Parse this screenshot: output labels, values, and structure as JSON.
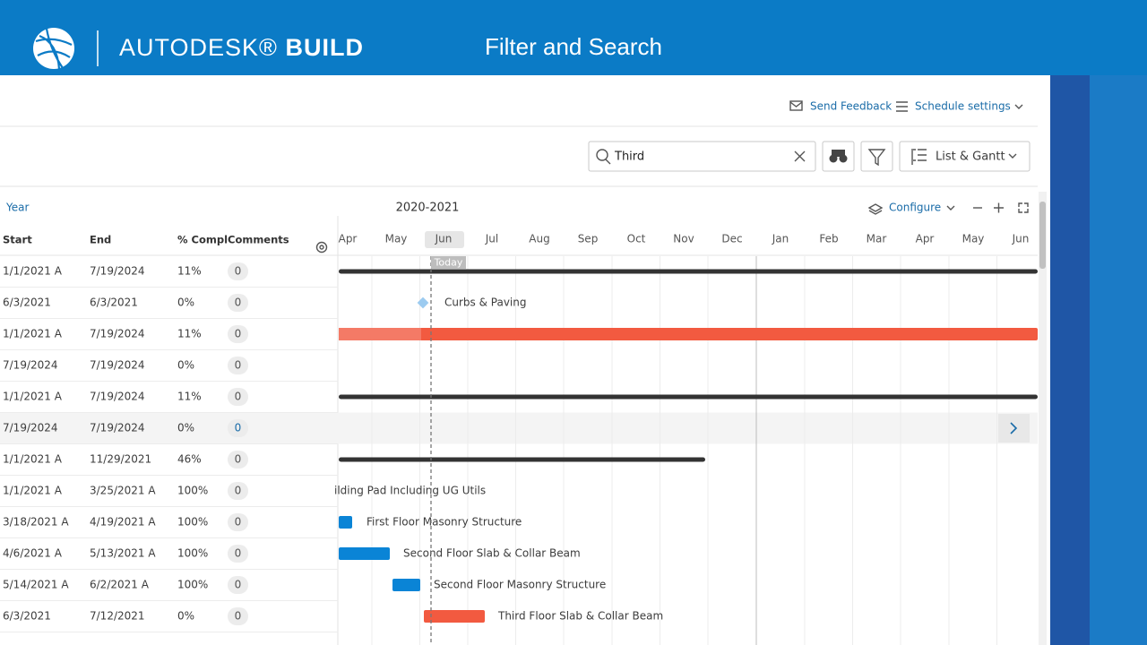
{
  "header": {
    "brand": "AUTODESK®",
    "brand_bold": "BUILD",
    "title": "Filter and Search"
  },
  "toolbar": {
    "send_feedback": "Send Feedback",
    "schedule_settings": "Schedule settings",
    "search": "Third",
    "view": "List & Gantt"
  },
  "table": {
    "timescale": "Year",
    "columns": [
      "Start",
      "End",
      "% Compl",
      "Comments"
    ],
    "rows": [
      {
        "cells": [
          "1/1/2021 A",
          "7/19/2024",
          "11%",
          "0"
        ]
      },
      {
        "cells": [
          "6/3/2021",
          "6/3/2021",
          "0%",
          "0"
        ],
        "label": "Curbs & Paving"
      },
      {
        "cells": [
          "1/1/2021 A",
          "7/19/2024",
          "11%",
          "0"
        ]
      },
      {
        "cells": [
          "7/19/2024",
          "7/19/2024",
          "0%",
          "0"
        ]
      },
      {
        "cells": [
          "1/1/2021 A",
          "7/19/2024",
          "11%",
          "0"
        ]
      },
      {
        "cells": [
          "7/19/2024",
          "7/19/2024",
          "0%",
          "0"
        ]
      },
      {
        "cells": [
          "1/1/2021 A",
          "11/29/2021",
          "46%",
          "0"
        ]
      },
      {
        "cells": [
          "1/1/2021 A",
          "3/25/2021 A",
          "100%",
          "0"
        ],
        "label": "ilding Pad Including UG Utils"
      },
      {
        "cells": [
          "3/18/2021 A",
          "4/19/2021 A",
          "100%",
          "0"
        ],
        "label": "First Floor Masonry Structure"
      },
      {
        "cells": [
          "4/6/2021 A",
          "5/13/2021 A",
          "100%",
          "0"
        ],
        "label": "Second Floor Slab & Collar Beam"
      },
      {
        "cells": [
          "5/14/2021 A",
          "6/2/2021 A",
          "100%",
          "0"
        ],
        "label": "Second Floor Masonry Structure"
      },
      {
        "cells": [
          "6/3/2021",
          "7/12/2021",
          "0%",
          "0"
        ],
        "label": "Third Floor Slab & Collar Beam"
      }
    ]
  },
  "gantt": {
    "period": "2020-2021",
    "configure": "Configure",
    "today": "Today",
    "months": [
      "Apr",
      "May",
      "Jun",
      "Jul",
      "Aug",
      "Sep",
      "Oct",
      "Nov",
      "Dec",
      "Jan",
      "Feb",
      "Mar",
      "Apr",
      "May",
      "Jun"
    ]
  }
}
